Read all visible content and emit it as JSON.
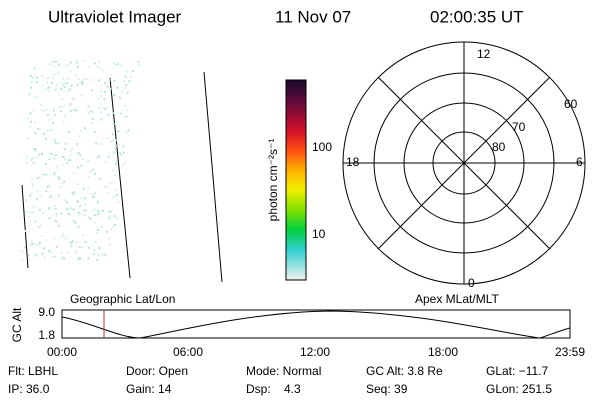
{
  "header": {
    "title": "Ultraviolet Imager",
    "date": "11 Nov 07",
    "time": "02:00:35 UT"
  },
  "colorbar": {
    "label": "photon cm⁻²s⁻¹",
    "ticks": [
      "100",
      "10"
    ]
  },
  "polar": {
    "labels": [
      "12",
      "60",
      "70",
      "80",
      "18",
      "6",
      "0"
    ]
  },
  "altitude_plot": {
    "ylabel": "GC Alt",
    "yticks": [
      "9.0",
      "1.8"
    ],
    "left_title": "Geographic Lat/Lon",
    "right_title": "Apex MLat/MLT",
    "xticks": [
      "00:00",
      "06:00",
      "12:00",
      "18:00",
      "23:59"
    ]
  },
  "info": {
    "rows": [
      [
        "Flt: LBHL",
        "Door: Open",
        "Mode: Normal",
        "GC Alt: 3.8 Re",
        "GLat: −11.7"
      ],
      [
        "IP: 36.0",
        "Gain: 14",
        "Dsp:    4.3",
        "Seq: 39",
        "GLon: 251.5"
      ]
    ]
  }
}
